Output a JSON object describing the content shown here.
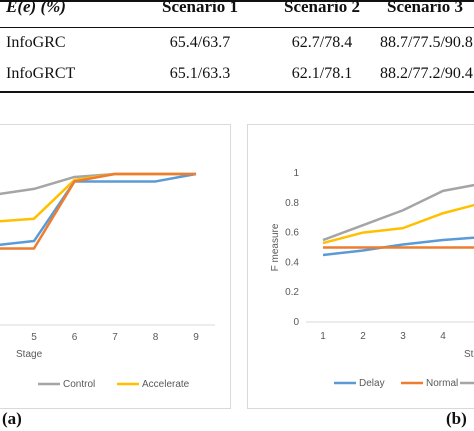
{
  "table": {
    "headers": [
      "E(e) (%)",
      "Scenario 1",
      "Scenario 2",
      "Scenario 3"
    ],
    "rows": [
      [
        "InfoGRC",
        "65.4/63.7",
        "62.7/78.4",
        "88.7/77.5/90.8"
      ],
      [
        "InfoGRCT",
        "65.1/63.3",
        "62.1/78.1",
        "88.2/77.2/90.4"
      ]
    ]
  },
  "panel_labels": {
    "a": "(a)",
    "b": "(b)"
  },
  "chart_data": [
    {
      "type": "line",
      "title": "",
      "xlabel": "Stage",
      "ylabel": "",
      "x": [
        4,
        5,
        6,
        7,
        8,
        9
      ],
      "x_tick_labels": [
        "5",
        "6",
        "7",
        "8",
        "9"
      ],
      "ylim": [
        0,
        1
      ],
      "series": [
        {
          "name": "Control",
          "color": "#a5a5a5",
          "values": [
            0.86,
            0.9,
            0.98,
            1.0,
            1.0,
            1.0
          ]
        },
        {
          "name": "Accelerate",
          "color": "#ffc000",
          "values": [
            0.68,
            0.7,
            0.96,
            1.0,
            1.0,
            1.0
          ]
        },
        {
          "name": "",
          "color": "#5b9bd5",
          "values": [
            0.52,
            0.55,
            0.95,
            0.95,
            0.95,
            1.0
          ]
        },
        {
          "name": "",
          "color": "#ed7d31",
          "values": [
            0.5,
            0.5,
            0.95,
            1.0,
            1.0,
            1.0
          ]
        }
      ],
      "legend": "bottom",
      "grid": false
    },
    {
      "type": "line",
      "title": "",
      "xlabel": "Stage",
      "ylabel": "F measure",
      "x": [
        1,
        2,
        3,
        4,
        5
      ],
      "x_tick_labels": [
        "1",
        "2",
        "3",
        "4"
      ],
      "y_tick_labels": [
        "0",
        "0.2",
        "0.4",
        "0.6",
        "0.8",
        "1"
      ],
      "ylim": [
        0,
        1
      ],
      "series": [
        {
          "name": "Delay",
          "color": "#5b9bd5",
          "values": [
            0.45,
            0.48,
            0.52,
            0.55,
            0.57
          ]
        },
        {
          "name": "Normal",
          "color": "#ed7d31",
          "values": [
            0.5,
            0.5,
            0.5,
            0.5,
            0.5
          ]
        },
        {
          "name": "",
          "color": "#a5a5a5",
          "values": [
            0.55,
            0.65,
            0.75,
            0.88,
            0.93
          ]
        },
        {
          "name": "",
          "color": "#ffc000",
          "values": [
            0.53,
            0.6,
            0.63,
            0.73,
            0.8
          ]
        }
      ],
      "legend": "bottom",
      "grid": false
    }
  ]
}
